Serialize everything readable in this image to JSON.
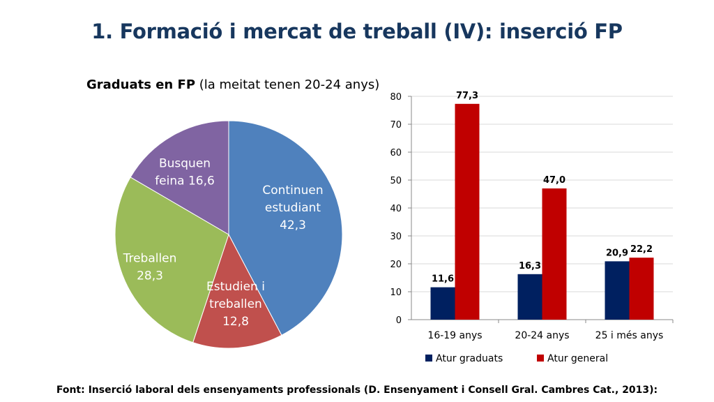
{
  "slide": {
    "title": "1. Formació i mercat de treball (IV): inserció FP",
    "footer": "Font: Inserció laboral dels ensenyaments professionals (D. Ensenyament i Consell Gral. Cambres Cat., 2013):"
  },
  "chart_data": [
    {
      "type": "pie",
      "title_bold": "Graduats en FP",
      "title_rest": " (la meitat tenen 20-24 anys)",
      "slices": [
        {
          "label_lines": [
            "Continuen",
            "estudiant",
            "42,3"
          ],
          "value": 42.3,
          "color": "#4F81BD"
        },
        {
          "label_lines": [
            "Estudien i",
            "treballen",
            "12,8"
          ],
          "value": 12.8,
          "color": "#C0504D"
        },
        {
          "label_lines": [
            "Treballen",
            "28,3"
          ],
          "value": 28.3,
          "color": "#9BBB59"
        },
        {
          "label_lines": [
            "Busquen",
            "feina 16,6"
          ],
          "value": 16.6,
          "color": "#8064A2"
        }
      ]
    },
    {
      "type": "bar",
      "categories": [
        "16-19 anys",
        "20-24 anys",
        "25 i més anys"
      ],
      "series": [
        {
          "name": "Atur graduats",
          "values": [
            11.6,
            16.3,
            20.9
          ],
          "labels": [
            "11,6",
            "16,3",
            "20,9"
          ],
          "color": "#002060"
        },
        {
          "name": "Atur general",
          "values": [
            77.3,
            47.0,
            22.2
          ],
          "labels": [
            "77,3",
            "47,0",
            "22,2"
          ],
          "color": "#C00000"
        }
      ],
      "ylim": [
        0,
        80
      ],
      "yticks": [
        "0",
        "10",
        "20",
        "30",
        "40",
        "50",
        "60",
        "70",
        "80"
      ],
      "grid": true,
      "legend": "bottom"
    }
  ]
}
